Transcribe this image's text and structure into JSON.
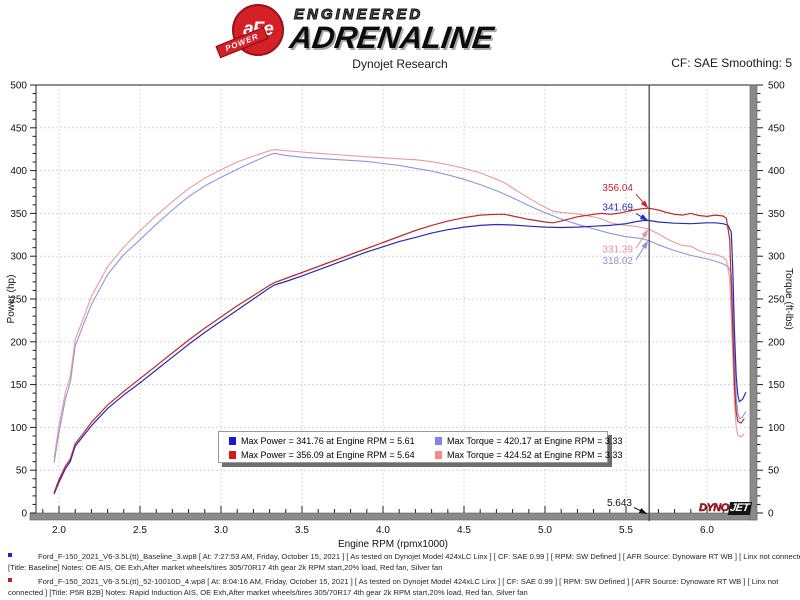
{
  "header": {
    "title": "Dynojet Research",
    "cf_label": "CF: SAE Smoothing: 5",
    "brand": {
      "circle_text": "aFe",
      "banner_text": "POWER",
      "line1": "ENGINEERED",
      "line2": "ADRENALINE"
    }
  },
  "legend": {
    "items": [
      {
        "swatch": "#1a1ad6",
        "text": "Max Power = 341.76 at Engine RPM = 5.61"
      },
      {
        "swatch": "#8084e6",
        "text": "Max Torque = 420.17 at Engine RPM = 3.33"
      },
      {
        "swatch": "#d61a1a",
        "text": "Max Power = 356.09 at Engine RPM = 5.64"
      },
      {
        "swatch": "#ef8d8d",
        "text": "Max Torque = 424.52 at Engine RPM = 3.33"
      }
    ]
  },
  "dynojet_logo": {
    "part1": "DYNO",
    "part2": "JET"
  },
  "chart_data": {
    "type": "line",
    "title": "Dynojet Research",
    "xlabel": "Engine RPM (rpmx1000)",
    "ylabel_left": "Power (hp)",
    "ylabel_right": "Torque (ft-lbs)",
    "xlim": [
      1.86,
      6.27
    ],
    "ylim_left": [
      0,
      500
    ],
    "ylim_right": [
      0,
      500
    ],
    "x_ticks": [
      2.0,
      2.5,
      3.0,
      3.5,
      4.0,
      4.5,
      5.0,
      5.5,
      6.0
    ],
    "y_ticks": [
      0,
      50,
      100,
      150,
      200,
      250,
      300,
      350,
      400,
      450,
      500
    ],
    "grid": "dotted",
    "cursor": {
      "rpm": 5.643,
      "rpm_label": "5.643",
      "readouts": [
        {
          "text": "356.04",
          "value": 356.04,
          "color": "#cb2030",
          "dy": -17
        },
        {
          "text": "341.69",
          "value": 341.69,
          "color": "#2230bd",
          "dy": -10
        },
        {
          "text": "331.39",
          "value": 331.39,
          "color": "#ea929a",
          "dy": 23
        },
        {
          "text": "318.02",
          "value": 318.02,
          "color": "#8a90dc",
          "dy": 23
        }
      ]
    },
    "series": [
      {
        "name": "torque-baseline",
        "unit": "ft-lbs",
        "color": "#9095dc",
        "width": 1.1,
        "points": [
          [
            1.97,
            58.7
          ],
          [
            2.0,
            94.5
          ],
          [
            2.04,
            133.9
          ],
          [
            2.07,
            152.2
          ],
          [
            2.1,
            195.1
          ],
          [
            2.15,
            219.9
          ],
          [
            2.2,
            243.5
          ],
          [
            2.3,
            278.6
          ],
          [
            2.4,
            302.0
          ],
          [
            2.5,
            319.3
          ],
          [
            2.6,
            337.3
          ],
          [
            2.7,
            354.0
          ],
          [
            2.8,
            369.5
          ],
          [
            2.9,
            382.1
          ],
          [
            3.0,
            392.1
          ],
          [
            3.1,
            401.5
          ],
          [
            3.2,
            410.3
          ],
          [
            3.3,
            418.5
          ],
          [
            3.33,
            420.2
          ],
          [
            3.4,
            417.8
          ],
          [
            3.5,
            415.7
          ],
          [
            3.6,
            414.3
          ],
          [
            3.7,
            413.1
          ],
          [
            3.8,
            411.9
          ],
          [
            3.9,
            410.7
          ],
          [
            4.0,
            408.3
          ],
          [
            4.1,
            406.1
          ],
          [
            4.2,
            402.7
          ],
          [
            4.3,
            399.4
          ],
          [
            4.4,
            395.1
          ],
          [
            4.5,
            389.8
          ],
          [
            4.6,
            383.6
          ],
          [
            4.7,
            376.6
          ],
          [
            4.8,
            368.2
          ],
          [
            4.9,
            359.1
          ],
          [
            5.0,
            350.8
          ],
          [
            5.1,
            343.5
          ],
          [
            5.2,
            337.3
          ],
          [
            5.3,
            332.0
          ],
          [
            5.4,
            326.8
          ],
          [
            5.5,
            322.8
          ],
          [
            5.55,
            321.7
          ],
          [
            5.61,
            320.0
          ],
          [
            5.643,
            318.0
          ],
          [
            5.7,
            313.3
          ],
          [
            5.8,
            306.5
          ],
          [
            5.9,
            300.9
          ],
          [
            6.0,
            296.7
          ],
          [
            6.05,
            294.3
          ],
          [
            6.1,
            291.0
          ],
          [
            6.13,
            287.9
          ],
          [
            6.15,
            280.1
          ],
          [
            6.16,
            238.7
          ],
          [
            6.17,
            178.8
          ],
          [
            6.18,
            136.0
          ],
          [
            6.19,
            117.1
          ],
          [
            6.2,
            110.1
          ],
          [
            6.22,
            112.3
          ],
          [
            6.24,
            118.7
          ]
        ]
      },
      {
        "name": "torque-p5r",
        "unit": "ft-lbs",
        "color": "#e89b9b",
        "width": 1.1,
        "points": [
          [
            1.97,
            64.0
          ],
          [
            2.0,
            102.4
          ],
          [
            2.04,
            141.6
          ],
          [
            2.07,
            159.8
          ],
          [
            2.1,
            202.6
          ],
          [
            2.15,
            227.2
          ],
          [
            2.2,
            253.1
          ],
          [
            2.3,
            287.7
          ],
          [
            2.4,
            310.7
          ],
          [
            2.5,
            329.8
          ],
          [
            2.6,
            347.4
          ],
          [
            2.7,
            363.7
          ],
          [
            2.8,
            378.9
          ],
          [
            2.9,
            391.2
          ],
          [
            3.0,
            400.9
          ],
          [
            3.1,
            410.0
          ],
          [
            3.2,
            416.9
          ],
          [
            3.3,
            423.3
          ],
          [
            3.33,
            424.5
          ],
          [
            3.4,
            423.3
          ],
          [
            3.5,
            421.7
          ],
          [
            3.6,
            420.2
          ],
          [
            3.7,
            418.8
          ],
          [
            3.8,
            417.4
          ],
          [
            3.9,
            416.1
          ],
          [
            4.0,
            414.9
          ],
          [
            4.1,
            413.8
          ],
          [
            4.2,
            412.7
          ],
          [
            4.3,
            410.4
          ],
          [
            4.4,
            407.0
          ],
          [
            4.5,
            402.7
          ],
          [
            4.6,
            397.3
          ],
          [
            4.7,
            390.0
          ],
          [
            4.75,
            385.9
          ],
          [
            4.8,
            379.7
          ],
          [
            4.9,
            367.7
          ],
          [
            5.0,
            357.1
          ],
          [
            5.05,
            352.6
          ],
          [
            5.1,
            351.2
          ],
          [
            5.2,
            349.4
          ],
          [
            5.3,
            345.9
          ],
          [
            5.35,
            343.6
          ],
          [
            5.4,
            339.4
          ],
          [
            5.45,
            337.3
          ],
          [
            5.5,
            336.1
          ],
          [
            5.55,
            335.0
          ],
          [
            5.6,
            333.4
          ],
          [
            5.64,
            331.6
          ],
          [
            5.7,
            326.2
          ],
          [
            5.75,
            320.6
          ],
          [
            5.8,
            316.0
          ],
          [
            5.85,
            312.4
          ],
          [
            5.9,
            311.6
          ],
          [
            5.95,
            306.7
          ],
          [
            6.0,
            303.3
          ],
          [
            6.05,
            302.1
          ],
          [
            6.1,
            298.8
          ],
          [
            6.12,
            295.2
          ],
          [
            6.14,
            273.7
          ],
          [
            6.16,
            179.0
          ],
          [
            6.17,
            127.7
          ],
          [
            6.18,
            100.3
          ],
          [
            6.19,
            90.8
          ],
          [
            6.21,
            88.8
          ],
          [
            6.23,
            92.7
          ]
        ]
      },
      {
        "name": "power-baseline",
        "unit": "hp",
        "color": "#2a2ab8",
        "width": 1.2,
        "points": [
          [
            1.97,
            22
          ],
          [
            2.0,
            36
          ],
          [
            2.04,
            52
          ],
          [
            2.07,
            60
          ],
          [
            2.1,
            78
          ],
          [
            2.15,
            90
          ],
          [
            2.2,
            102
          ],
          [
            2.3,
            122
          ],
          [
            2.4,
            138
          ],
          [
            2.5,
            152
          ],
          [
            2.6,
            167
          ],
          [
            2.7,
            182
          ],
          [
            2.8,
            197
          ],
          [
            2.9,
            211
          ],
          [
            3.0,
            224
          ],
          [
            3.1,
            237
          ],
          [
            3.2,
            250
          ],
          [
            3.3,
            263
          ],
          [
            3.33,
            266.4
          ],
          [
            3.4,
            270.5
          ],
          [
            3.5,
            277
          ],
          [
            3.6,
            284
          ],
          [
            3.7,
            291
          ],
          [
            3.8,
            298
          ],
          [
            3.9,
            305
          ],
          [
            4.0,
            311
          ],
          [
            4.1,
            317
          ],
          [
            4.2,
            322
          ],
          [
            4.3,
            327
          ],
          [
            4.4,
            331
          ],
          [
            4.5,
            334
          ],
          [
            4.6,
            336
          ],
          [
            4.7,
            337
          ],
          [
            4.8,
            336.5
          ],
          [
            4.9,
            335
          ],
          [
            5.0,
            334
          ],
          [
            5.1,
            333.5
          ],
          [
            5.2,
            334
          ],
          [
            5.3,
            335
          ],
          [
            5.4,
            336
          ],
          [
            5.5,
            338
          ],
          [
            5.55,
            340
          ],
          [
            5.61,
            341.8
          ],
          [
            5.643,
            341.7
          ],
          [
            5.7,
            340
          ],
          [
            5.8,
            338.5
          ],
          [
            5.9,
            338
          ],
          [
            6.0,
            339
          ],
          [
            6.05,
            339
          ],
          [
            6.1,
            338
          ],
          [
            6.13,
            336
          ],
          [
            6.15,
            328
          ],
          [
            6.16,
            280
          ],
          [
            6.17,
            210
          ],
          [
            6.18,
            160
          ],
          [
            6.19,
            138
          ],
          [
            6.2,
            130
          ],
          [
            6.22,
            133
          ],
          [
            6.24,
            141
          ]
        ]
      },
      {
        "name": "power-p5r",
        "unit": "hp",
        "color": "#bb2a2a",
        "width": 1.2,
        "points": [
          [
            1.97,
            24
          ],
          [
            2.0,
            39
          ],
          [
            2.04,
            55
          ],
          [
            2.07,
            63
          ],
          [
            2.1,
            81
          ],
          [
            2.15,
            93
          ],
          [
            2.2,
            106
          ],
          [
            2.3,
            126
          ],
          [
            2.4,
            142
          ],
          [
            2.5,
            157
          ],
          [
            2.6,
            172
          ],
          [
            2.7,
            187
          ],
          [
            2.8,
            202
          ],
          [
            2.9,
            216
          ],
          [
            3.0,
            229
          ],
          [
            3.1,
            242
          ],
          [
            3.2,
            254
          ],
          [
            3.3,
            266
          ],
          [
            3.33,
            269.2
          ],
          [
            3.4,
            274
          ],
          [
            3.5,
            281
          ],
          [
            3.6,
            288
          ],
          [
            3.7,
            295
          ],
          [
            3.8,
            302
          ],
          [
            3.9,
            309
          ],
          [
            4.0,
            316
          ],
          [
            4.1,
            323
          ],
          [
            4.2,
            330
          ],
          [
            4.3,
            336
          ],
          [
            4.4,
            341
          ],
          [
            4.5,
            345
          ],
          [
            4.6,
            348
          ],
          [
            4.7,
            349
          ],
          [
            4.75,
            349
          ],
          [
            4.8,
            347
          ],
          [
            4.9,
            343
          ],
          [
            5.0,
            340
          ],
          [
            5.05,
            339
          ],
          [
            5.1,
            341
          ],
          [
            5.2,
            346
          ],
          [
            5.3,
            349
          ],
          [
            5.35,
            350
          ],
          [
            5.4,
            349
          ],
          [
            5.45,
            350
          ],
          [
            5.5,
            352
          ],
          [
            5.55,
            354
          ],
          [
            5.6,
            355.5
          ],
          [
            5.64,
            356.1
          ],
          [
            5.7,
            354
          ],
          [
            5.75,
            351
          ],
          [
            5.8,
            349
          ],
          [
            5.85,
            348
          ],
          [
            5.9,
            350
          ],
          [
            5.95,
            347.5
          ],
          [
            6.0,
            346.5
          ],
          [
            6.05,
            348
          ],
          [
            6.1,
            347
          ],
          [
            6.12,
            344
          ],
          [
            6.14,
            320
          ],
          [
            6.16,
            210
          ],
          [
            6.17,
            150
          ],
          [
            6.18,
            118
          ],
          [
            6.19,
            107
          ],
          [
            6.21,
            105
          ],
          [
            6.23,
            110
          ]
        ]
      }
    ]
  },
  "footer": {
    "entries": [
      {
        "bullet_color": "#2222bb",
        "line1": "Ford_F-150_2021_V6-3.5L(tt)_Baseline_3.wp8 [ At: 7:27:53 AM, Friday, October 15, 2021 ] [ As tested on Dynojet Model 424xLC Linx ] [ CF: SAE 0.99 ] [ RPM: SW Defined ] [ AFR Source: Dynoware RT WB ] [ Linx not connected",
        "line2": "[Title: Baseline]  Notes: OE AIS, OE Exh,After market wheels/tires 305/70R17 4th gear 2k RPM start,20% load, Red fan, Silver fan"
      },
      {
        "bullet_color": "#bb2222",
        "line1": "Ford_F-150_2021_V6-3.5L(tt)_52-10010D_4.wp8 [ At: 8:04:16 AM, Friday, October 15, 2021 ] [ As tested on Dynojet Model 424xLC Linx ] [ CF: SAE 0.99 ] [ RPM: SW Defined ] [ AFR Source: Dynoware RT WB ] [ Linx not",
        "line2": "connected ] [Title: P5R B2B]  Notes: Rapid Induction AIS, OE Exh,After market wheels/tires 305/70R17 4th gear 2k RPM start,20% load, Red fan, Silver fan"
      }
    ]
  }
}
